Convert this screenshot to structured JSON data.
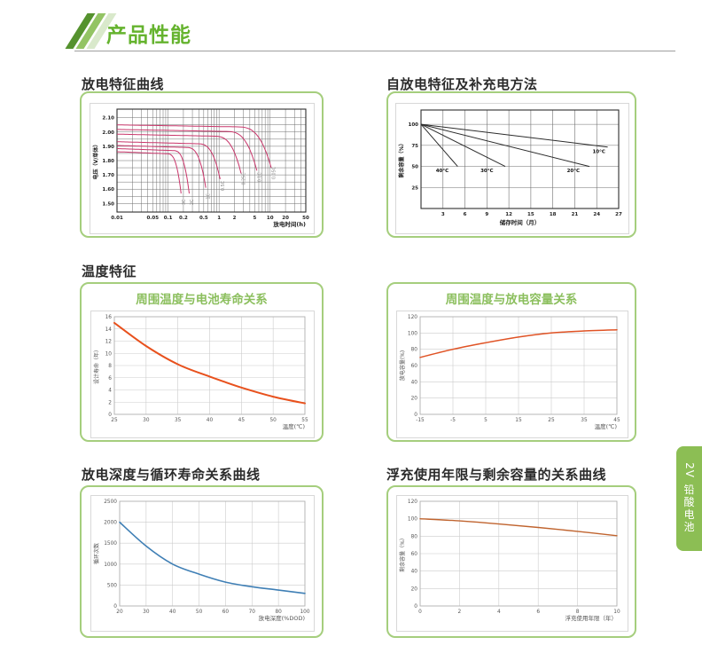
{
  "header": {
    "title": "产品性能"
  },
  "side_tab": {
    "label_rotated": "2V",
    "label_stacked": "铅酸电池"
  },
  "sections": {
    "discharge": {
      "title": "放电特征曲线"
    },
    "self_discharge": {
      "title": "自放电特征及补充电方法"
    },
    "temperature": {
      "title": "温度特征"
    },
    "dod_cycle": {
      "title": "放电深度与循环寿命关系曲线"
    },
    "float_life": {
      "title": "浮充使用年限与剩余容量的关系曲线"
    }
  },
  "colors": {
    "accent_green": "#65b32e",
    "card_border": "#a5ce7d",
    "title_green": "#8cbf5e",
    "tab_green": "#8cbe54",
    "stripe_dark": "#55922e",
    "stripe_mid": "#93c464",
    "stripe_light": "#d9e9cb",
    "rule_gray": "#9f9f9f"
  },
  "chart_data": [
    {
      "id": "discharge_curves",
      "type": "line",
      "x_scale": "log",
      "xlabel": "放电时间(h)",
      "ylabel": "电压（V/单体）",
      "xlim": [
        0.01,
        50
      ],
      "ylim": [
        1.44,
        2.16
      ],
      "x_ticks": [
        "0.01",
        "0.05",
        "0.1",
        "0.2",
        "0.5",
        "1",
        "2",
        "5",
        "10",
        "20",
        "50"
      ],
      "y_ticks": [
        "1.50",
        "1.60",
        "1.70",
        "1.80",
        "1.90",
        "2.00",
        "2.10"
      ],
      "y_grid": [
        1.5,
        1.55,
        1.6,
        1.65,
        1.7,
        1.75,
        1.8,
        1.85,
        1.9,
        1.95,
        2.0,
        2.05,
        2.1
      ],
      "color": "#c9366b",
      "series": [
        {
          "name": "3C",
          "plateau": 1.862,
          "t_end": 0.18,
          "v_end": 1.57
        },
        {
          "name": "2C",
          "plateau": 1.884,
          "t_end": 0.26,
          "v_end": 1.57
        },
        {
          "name": "1C",
          "plateau": 1.906,
          "t_end": 0.55,
          "v_end": 1.61
        },
        {
          "name": "0.5C",
          "plateau": 1.932,
          "t_end": 1.05,
          "v_end": 1.67
        },
        {
          "name": "0.25C",
          "plateau": 1.985,
          "t_end": 2.7,
          "v_end": 1.71
        },
        {
          "name": "0.1C",
          "plateau": 2.018,
          "t_end": 5.5,
          "v_end": 1.73
        },
        {
          "name": "0.05C",
          "plateau": 2.05,
          "t_end": 10.5,
          "v_end": 1.75
        }
      ]
    },
    {
      "id": "self_discharge",
      "type": "line",
      "xlabel": "储存时间（月）",
      "ylabel": "剩余容量（%）",
      "xlim": [
        0,
        27
      ],
      "ylim": [
        0,
        117
      ],
      "x_ticks": [
        3,
        6,
        9,
        12,
        15,
        18,
        21,
        24,
        27
      ],
      "y_ticks": [
        25,
        50,
        75,
        100
      ],
      "color": "#2b2b2b",
      "series_lines": [
        {
          "name": "40°C",
          "points": [
            [
              0,
              100
            ],
            [
              5,
              50
            ]
          ],
          "label_pos": [
            2.9,
            43
          ]
        },
        {
          "name": "30°C",
          "points": [
            [
              0,
              100
            ],
            [
              11.5,
              50
            ]
          ],
          "label_pos": [
            9,
            43
          ]
        },
        {
          "name": "20°C",
          "points": [
            [
              0,
              100
            ],
            [
              23,
              50
            ]
          ],
          "label_pos": [
            20.8,
            43
          ]
        },
        {
          "name": "10°C",
          "points": [
            [
              0,
              100
            ],
            [
              25.5,
              73
            ]
          ],
          "label_pos": [
            24.3,
            66
          ]
        }
      ]
    },
    {
      "id": "temp_life",
      "card_title": "周围温度与电池寿命关系",
      "type": "line",
      "xlabel": "温度(℃)",
      "ylabel": "设计寿命（年）",
      "xlim": [
        25,
        55
      ],
      "ylim": [
        0,
        16
      ],
      "x_ticks": [
        25,
        30,
        35,
        40,
        45,
        50,
        55
      ],
      "y_ticks": [
        0,
        2,
        4,
        6,
        8,
        10,
        12,
        14,
        16
      ],
      "color": "#e8511d",
      "points": [
        [
          25,
          15
        ],
        [
          30,
          11.2
        ],
        [
          35,
          8.2
        ],
        [
          40,
          6.2
        ],
        [
          45,
          4.4
        ],
        [
          50,
          2.9
        ],
        [
          55,
          1.8
        ]
      ]
    },
    {
      "id": "temp_capacity",
      "card_title": "周围温度与放电容量关系",
      "type": "line",
      "xlabel": "温度(℃)",
      "ylabel": "放电容量(%)",
      "xlim": [
        -15,
        45
      ],
      "ylim": [
        0,
        120
      ],
      "x_ticks": [
        -15,
        -5,
        5,
        15,
        25,
        35,
        45
      ],
      "y_ticks": [
        0,
        20,
        40,
        60,
        80,
        100,
        120
      ],
      "color": "#e05325",
      "points": [
        [
          -15,
          70
        ],
        [
          -5,
          80
        ],
        [
          5,
          88
        ],
        [
          15,
          95
        ],
        [
          25,
          100
        ],
        [
          35,
          102.5
        ],
        [
          45,
          104
        ]
      ]
    },
    {
      "id": "dod_cycle",
      "type": "line",
      "xlabel": "放电深度(%DOD)",
      "ylabel": "循环次数",
      "x_categories": [
        "20",
        "30",
        "40",
        "50",
        "60",
        "70",
        "80",
        "100"
      ],
      "ylim": [
        0,
        2500
      ],
      "y_ticks": [
        0,
        500,
        1000,
        1500,
        2000,
        2500
      ],
      "color": "#3f7fb5",
      "values": [
        2000,
        1430,
        1000,
        760,
        570,
        460,
        380,
        300
      ]
    },
    {
      "id": "float_capacity",
      "type": "line",
      "xlabel": "浮充使用年限（年）",
      "ylabel": "剩余容量（%）",
      "xlim": [
        0,
        10
      ],
      "ylim": [
        0,
        120
      ],
      "x_ticks": [
        0,
        2,
        4,
        6,
        8,
        10
      ],
      "y_ticks": [
        0,
        20,
        40,
        60,
        80,
        100,
        120
      ],
      "color": "#c0642f",
      "points": [
        [
          0,
          100
        ],
        [
          2,
          97.5
        ],
        [
          4,
          94
        ],
        [
          6,
          90
        ],
        [
          8,
          85.5
        ],
        [
          10,
          80.5
        ]
      ]
    }
  ]
}
